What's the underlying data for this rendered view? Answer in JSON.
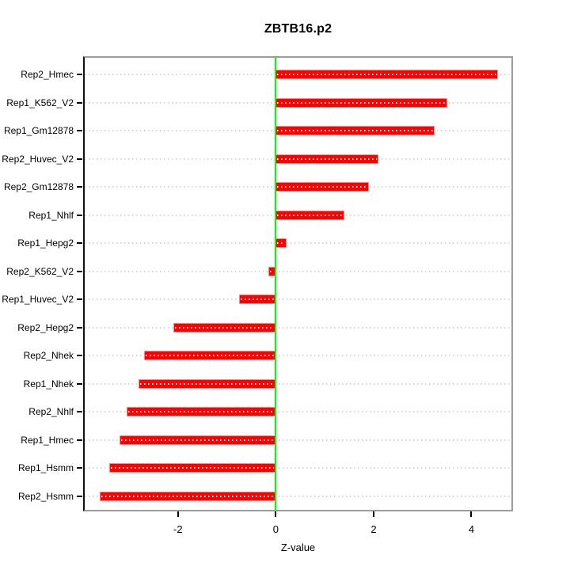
{
  "title": "ZBTB16.p2",
  "xlabel": "Z-value",
  "chart_data": {
    "type": "bar",
    "orientation": "horizontal",
    "title": "ZBTB16.p2",
    "xlabel": "Z-value",
    "ylabel": "",
    "categories": [
      "Rep2_Hmec",
      "Rep1_K562_V2",
      "Rep1_Gm12878",
      "Rep2_Huvec_V2",
      "Rep2_Gm12878",
      "Rep1_Nhlf",
      "Rep1_Hepg2",
      "Rep2_K562_V2",
      "Rep1_Huvec_V2",
      "Rep2_Hepg2",
      "Rep2_Nhek",
      "Rep1_Nhek",
      "Rep2_Nhlf",
      "Rep1_Hmec",
      "Rep1_Hsmm",
      "Rep2_Hsmm"
    ],
    "values": [
      4.55,
      3.5,
      3.25,
      2.1,
      1.9,
      1.4,
      0.22,
      -0.15,
      -0.75,
      -2.1,
      -2.7,
      -2.8,
      -3.05,
      -3.2,
      -3.4,
      -3.6
    ],
    "x_ticks": [
      "-2",
      "0",
      "2",
      "4"
    ],
    "x_tick_values": [
      -2,
      0,
      2,
      4
    ],
    "xlim": [
      -3.94,
      4.85
    ],
    "zero_line_value": 0,
    "grid": "dotted-row-leader-lines",
    "legend": "none",
    "colors": {
      "bar": "#FF0000",
      "bar_edge": "#FF8A8A",
      "bar_dots": "#FFFFFF",
      "zero_line": "#00FF00",
      "leader_line": "#D6D6D6",
      "box": "#9C9C9C",
      "axis": "#000000",
      "text": "#000000",
      "background": "#FFFFFF"
    }
  }
}
